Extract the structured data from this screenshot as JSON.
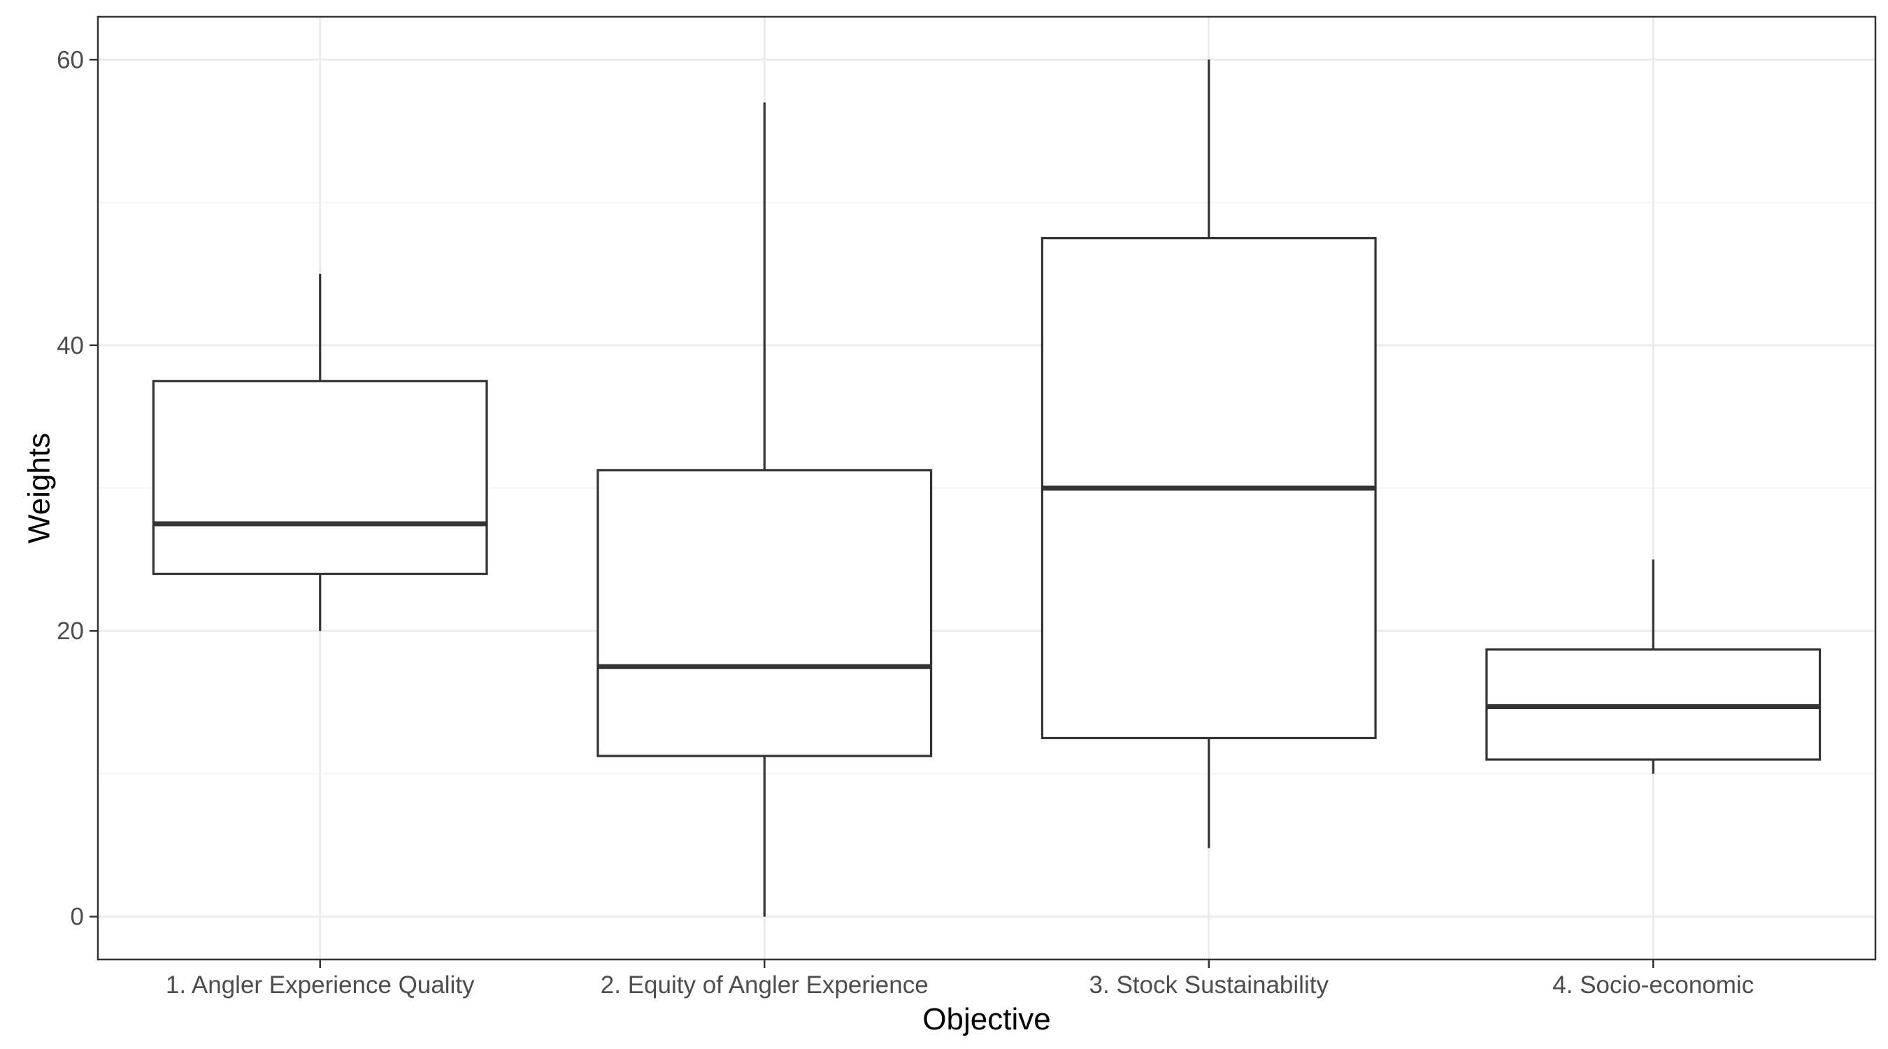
{
  "chart_data": {
    "type": "boxplot",
    "xlabel": "Objective",
    "ylabel": "Weights",
    "categories": [
      "1. Angler Experience Quality",
      "2. Equity of Angler Experience",
      "3. Stock Sustainability",
      "4. Socio-economic"
    ],
    "boxes": [
      {
        "whisker_low": 20,
        "q1": 24,
        "median": 27.5,
        "q3": 37.5,
        "whisker_high": 45
      },
      {
        "whisker_low": 0,
        "q1": 11.25,
        "median": 17.5,
        "q3": 31.25,
        "whisker_high": 57
      },
      {
        "whisker_low": 4.8,
        "q1": 12.5,
        "median": 30,
        "q3": 47.5,
        "whisker_high": 60
      },
      {
        "whisker_low": 10,
        "q1": 11,
        "median": 14.7,
        "q3": 18.7,
        "whisker_high": 25
      }
    ],
    "yticks": [
      0,
      20,
      40,
      60
    ],
    "yminor": [
      10,
      30,
      50
    ],
    "ylim": [
      -3,
      63
    ],
    "grid": true,
    "legend": "none",
    "colors": {
      "box_stroke": "#333333",
      "box_fill": "#ffffff",
      "grid": "#ebebeb"
    }
  }
}
